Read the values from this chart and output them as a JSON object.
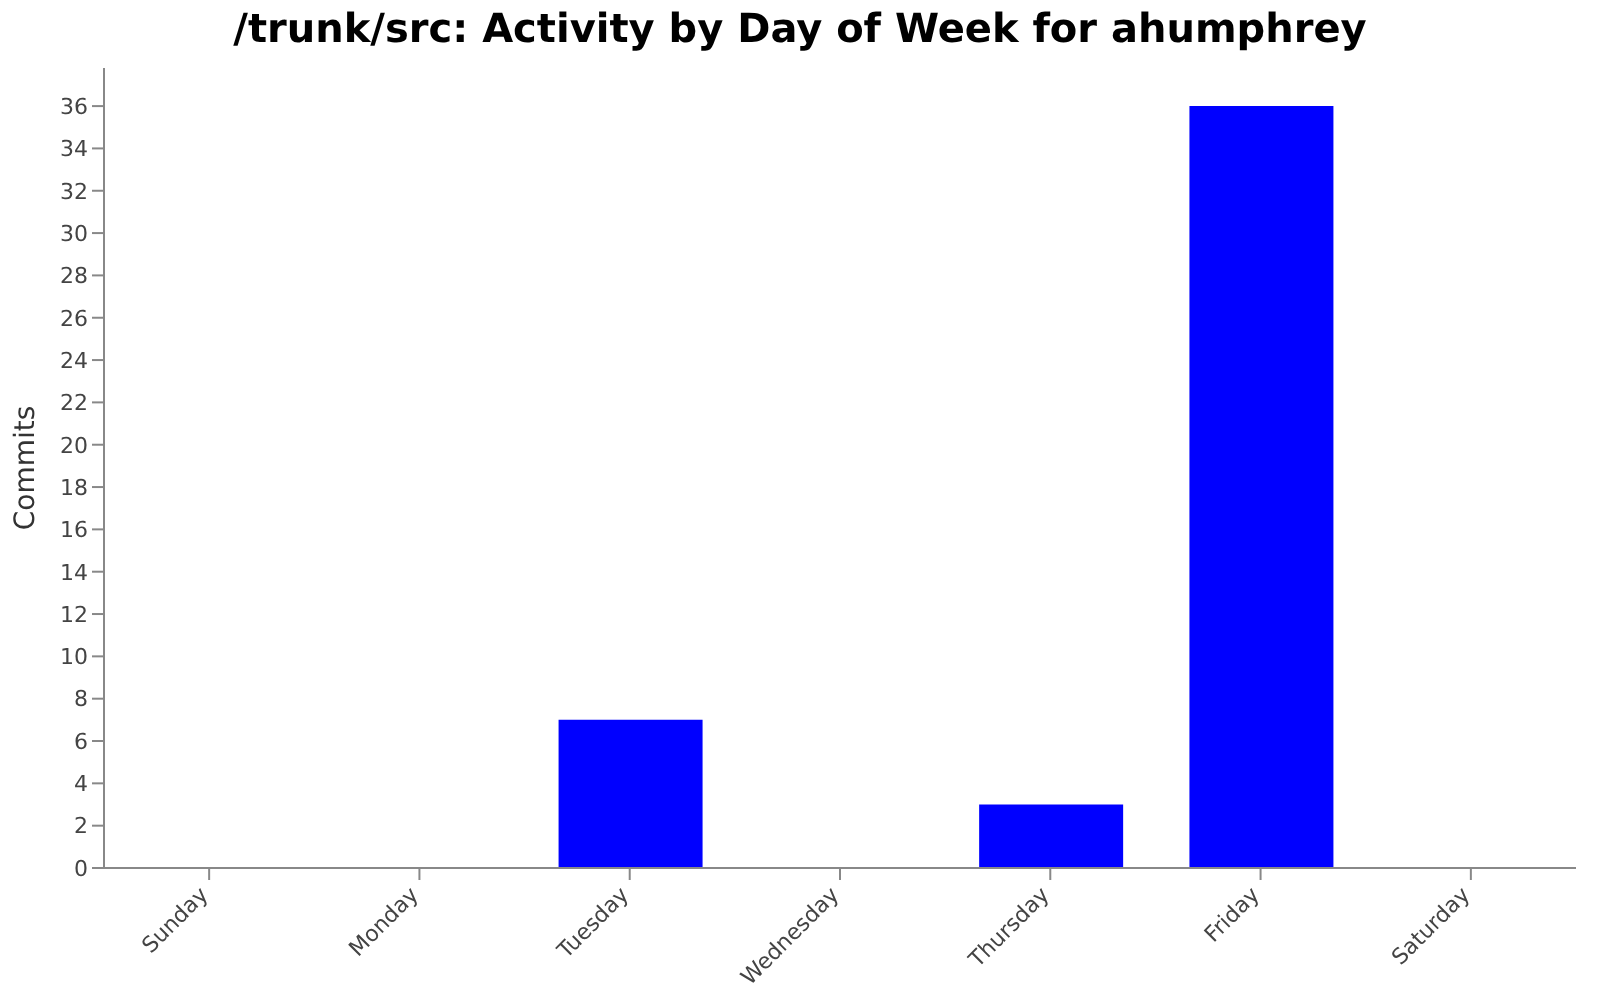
{
  "chart_data": {
    "type": "bar",
    "title": "/trunk/src: Activity by Day of Week for ahumphrey",
    "ylabel": "Commits",
    "categories": [
      "Sunday",
      "Monday",
      "Tuesday",
      "Wednesday",
      "Thursday",
      "Friday",
      "Saturday"
    ],
    "values": [
      0,
      0,
      7,
      0,
      3,
      36,
      0
    ],
    "color": "#0000ff",
    "ylim": [
      0,
      37.8
    ],
    "yticks": [
      0,
      2,
      4,
      6,
      8,
      10,
      12,
      14,
      16,
      18,
      20,
      22,
      24,
      26,
      28,
      30,
      32,
      34,
      36
    ]
  }
}
